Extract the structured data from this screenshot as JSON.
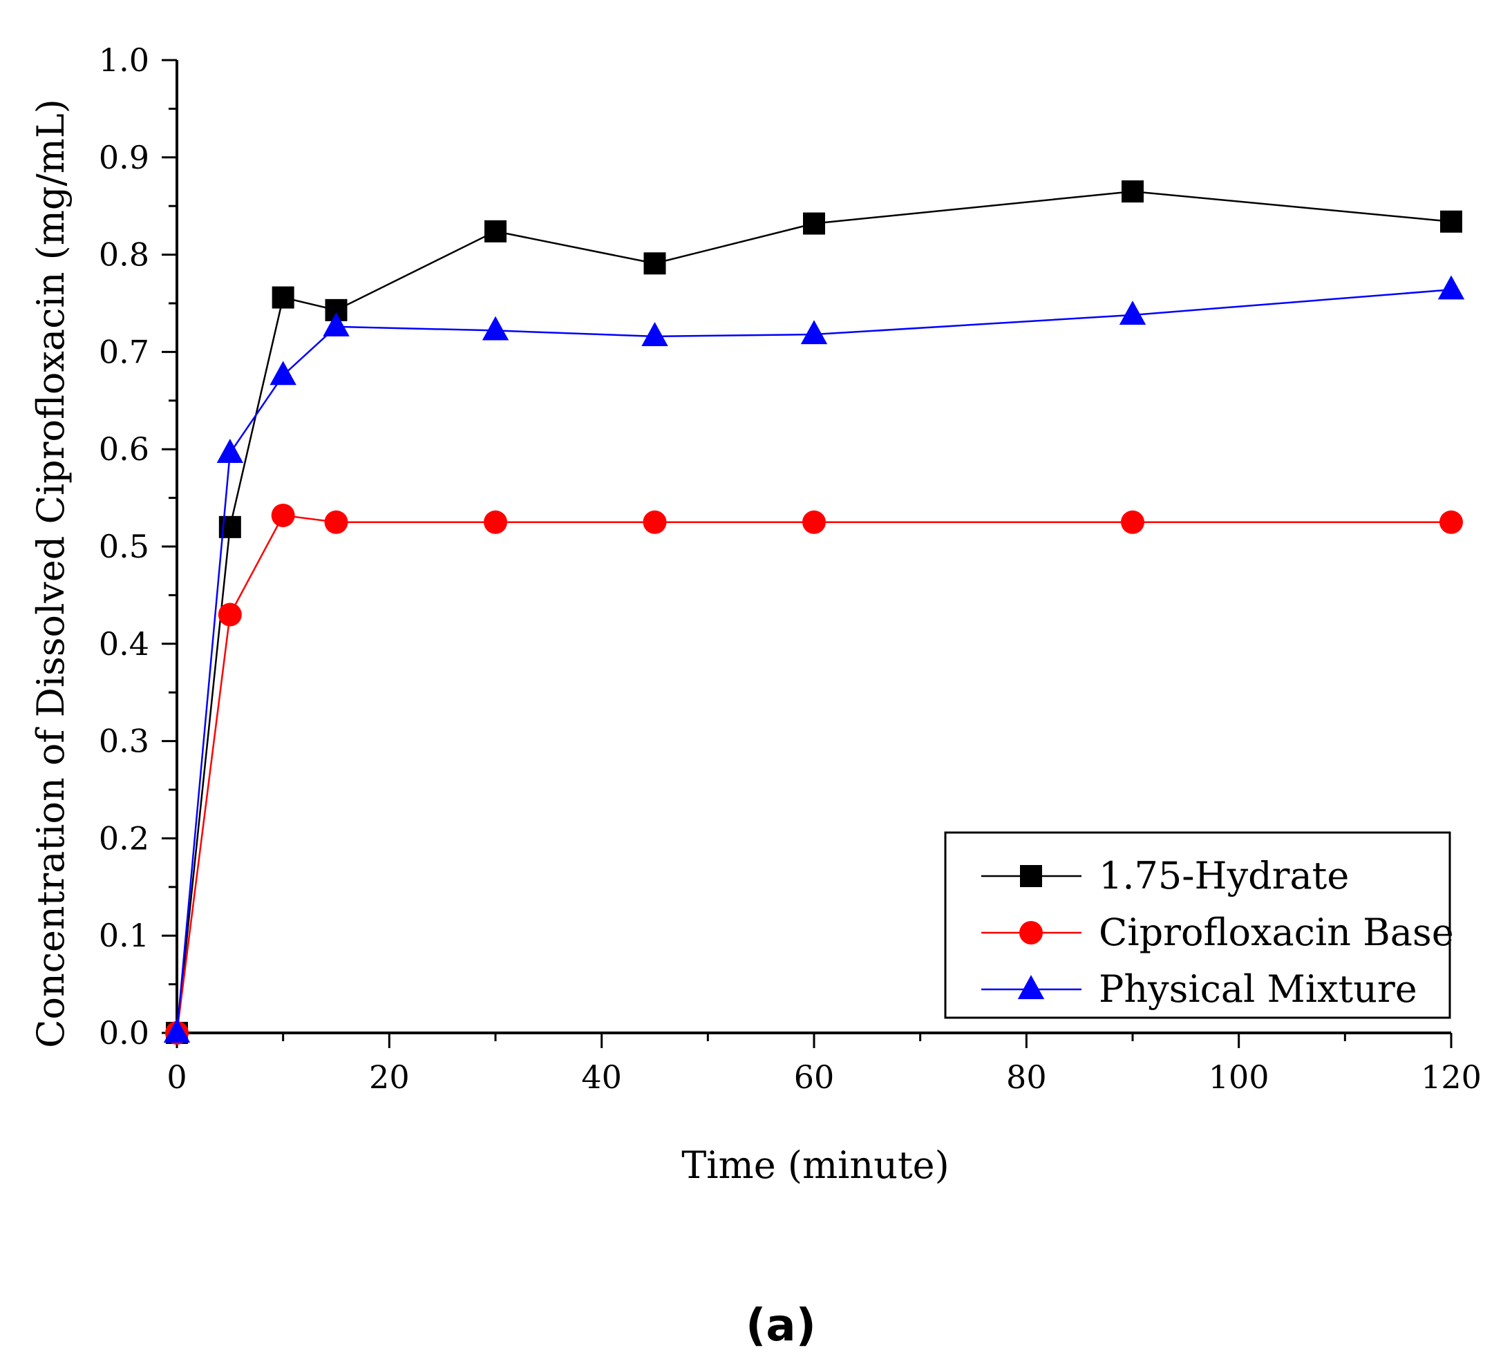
{
  "chart_data": {
    "type": "line",
    "title": "",
    "xlabel": "Time (minute)",
    "ylabel": "Concentration of Dissolved Ciprofloxacin (mg/mL)",
    "xlim": [
      0,
      120
    ],
    "ylim": [
      0.0,
      1.0
    ],
    "xticks": [
      "0",
      "20",
      "40",
      "60",
      "80",
      "100",
      "120"
    ],
    "yticks": [
      "0.0",
      "0.1",
      "0.2",
      "0.3",
      "0.4",
      "0.5",
      "0.6",
      "0.7",
      "0.8",
      "0.9",
      "1.0"
    ],
    "grid": false,
    "legend_position": "bottom-right",
    "panel_label": "(a)",
    "series": [
      {
        "name": "1.75-Hydrate",
        "color": "#000000",
        "marker": "square",
        "x": [
          0,
          5,
          10,
          15,
          30,
          45,
          60,
          90,
          120
        ],
        "values": [
          0.0,
          0.52,
          0.756,
          0.743,
          0.824,
          0.791,
          0.832,
          0.865,
          0.834
        ]
      },
      {
        "name": "Ciprofloxacin Base",
        "color": "#ff0000",
        "marker": "circle",
        "x": [
          0,
          5,
          10,
          15,
          30,
          45,
          60,
          90,
          120
        ],
        "values": [
          0.0,
          0.43,
          0.532,
          0.525,
          0.525,
          0.525,
          0.525,
          0.525,
          0.525
        ]
      },
      {
        "name": "Physical Mixture",
        "color": "#0000ff",
        "marker": "triangle",
        "x": [
          0,
          5,
          10,
          15,
          30,
          45,
          60,
          90,
          120
        ],
        "values": [
          0.0,
          0.596,
          0.676,
          0.726,
          0.722,
          0.716,
          0.718,
          0.738,
          0.764
        ]
      }
    ]
  }
}
